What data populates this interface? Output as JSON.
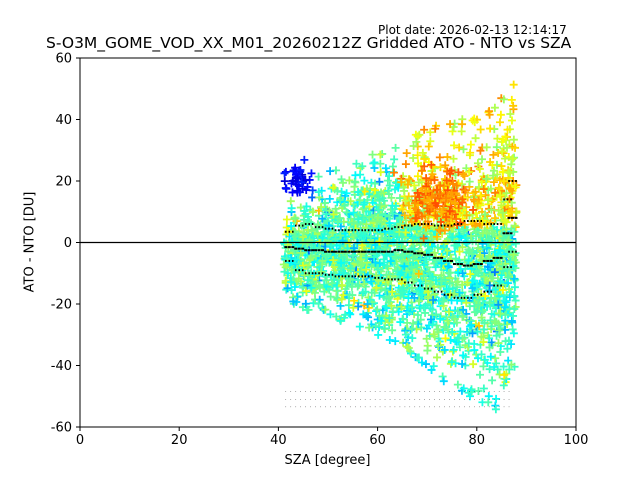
{
  "plot_date": "Plot date: 2026-02-13 12:14:17",
  "chart_data": {
    "type": "scatter",
    "title": "S-O3M_GOME_VOD_XX_M01_20260212Z Gridded ATO - NTO vs SZA",
    "xlabel": "SZA [degree]",
    "ylabel": "ATO - NTO [DU]",
    "xlim": [
      0,
      100
    ],
    "ylim": [
      -60,
      60
    ],
    "xticks": [
      0,
      20,
      40,
      60,
      80,
      100
    ],
    "yticks": [
      -60,
      -40,
      -20,
      0,
      20,
      40,
      60
    ],
    "grid": false,
    "zero_line": 0,
    "marker": "+",
    "colormap": "jet",
    "cloud_envelope": {
      "sza": [
        41,
        45,
        50,
        55,
        60,
        65,
        70,
        75,
        80,
        84,
        86,
        88
      ],
      "upper": [
        14,
        18,
        25,
        27,
        29,
        32,
        38,
        40,
        42,
        45,
        50,
        56
      ],
      "lower": [
        -18,
        -22,
        -24,
        -27,
        -30,
        -34,
        -42,
        -48,
        -52,
        -55,
        -45,
        -40
      ]
    },
    "series": [
      {
        "name": "median",
        "sza": [
          41.5,
          43.5,
          45.5,
          47.5,
          49.5,
          51.5,
          53.5,
          55.5,
          57.5,
          59.5,
          61.5,
          63.5,
          65.5,
          67.5,
          69.5,
          71.5,
          73.5,
          75.5,
          77.5,
          79.5,
          81.5,
          83.5,
          85.5,
          86.5
        ],
        "values": [
          -1.5,
          -2,
          -2.5,
          -2.5,
          -3,
          -3,
          -3,
          -3,
          -3,
          -3,
          -3,
          -2.5,
          -3,
          -3.5,
          -4,
          -5,
          -6,
          -7,
          -7.5,
          -7,
          -6,
          -5,
          3,
          8
        ]
      },
      {
        "name": "upper",
        "sza": [
          41.5,
          43.5,
          45.5,
          47.5,
          49.5,
          51.5,
          53.5,
          55.5,
          57.5,
          59.5,
          61.5,
          63.5,
          65.5,
          67.5,
          69.5,
          71.5,
          73.5,
          75.5,
          77.5,
          79.5,
          81.5,
          83.5,
          85.5,
          86.5
        ],
        "values": [
          3.5,
          5.5,
          6,
          5,
          4.5,
          4,
          4,
          4,
          4,
          4,
          4.5,
          5,
          5.5,
          6,
          6,
          5.5,
          5.5,
          6,
          7,
          7,
          6,
          6,
          14,
          20
        ]
      },
      {
        "name": "lower",
        "sza": [
          41.5,
          43.5,
          45.5,
          47.5,
          49.5,
          51.5,
          53.5,
          55.5,
          57.5,
          59.5,
          61.5,
          63.5,
          65.5,
          67.5,
          69.5,
          71.5,
          73.5,
          75.5,
          77.5,
          79.5,
          81.5,
          83.5,
          85.5,
          86.5
        ],
        "values": [
          -6,
          -9,
          -10,
          -10,
          -10.5,
          -11,
          -11,
          -11,
          -11,
          -11.5,
          -12,
          -12,
          -13,
          -14,
          -15,
          -16,
          -17,
          -18,
          -18,
          -17,
          -16,
          -14,
          -8,
          -3
        ]
      }
    ],
    "annotations": {
      "count_row_y": -49,
      "mean_row_y": -51.5,
      "std_row_y": -54,
      "start_sza": 41.5,
      "end_sza": 86.5
    }
  }
}
